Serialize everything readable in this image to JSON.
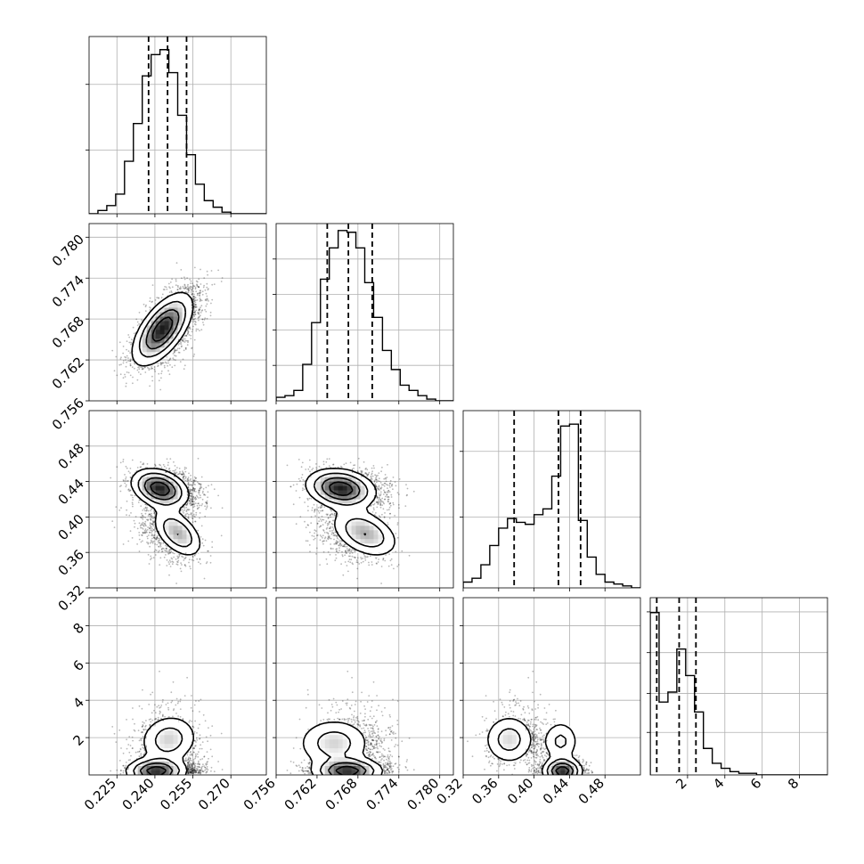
{
  "chart_data": {
    "type": "corner",
    "grid": true,
    "colors": {
      "line": "#000000",
      "grid": "#b0b0b0",
      "background": "#ffffff"
    },
    "parameters": [
      {
        "range": [
          0.214,
          0.284
        ],
        "ticks": [
          0.225,
          0.24,
          0.255,
          0.27
        ],
        "tick_labels": [
          "0.225",
          "0.240",
          "0.255",
          "0.270"
        ]
      },
      {
        "range": [
          0.756,
          0.782
        ],
        "ticks": [
          0.756,
          0.762,
          0.768,
          0.774,
          0.78
        ],
        "tick_labels": [
          "0.756",
          "0.762",
          "0.768",
          "0.774",
          "0.780"
        ]
      },
      {
        "range": [
          0.32,
          0.52
        ],
        "ticks": [
          0.32,
          0.36,
          0.4,
          0.44,
          0.48
        ],
        "tick_labels": [
          "0.32",
          "0.36",
          "0.40",
          "0.44",
          "0.48"
        ]
      },
      {
        "range": [
          0.0,
          9.5
        ],
        "ticks": [
          2,
          4,
          6,
          8
        ],
        "tick_labels": [
          "2",
          "4",
          "6",
          "8"
        ]
      }
    ],
    "histograms": [
      {
        "param": 0,
        "edges": [
          0.214,
          0.2175,
          0.221,
          0.2245,
          0.228,
          0.2315,
          0.235,
          0.2385,
          0.242,
          0.2455,
          0.249,
          0.2525,
          0.256,
          0.2595,
          0.263,
          0.2665,
          0.27,
          0.2735,
          0.277,
          0.2805,
          0.284
        ],
        "counts": [
          0,
          2,
          5,
          12,
          32,
          55,
          84,
          97,
          100,
          86,
          60,
          36,
          18,
          8,
          4,
          1,
          0,
          0,
          0,
          0
        ],
        "ymax": 108,
        "quantiles": [
          0.2375,
          0.245,
          0.2525
        ],
        "y_tick_fracs": [
          0.36,
          0.73
        ]
      },
      {
        "param": 1,
        "edges": [
          0.756,
          0.7573,
          0.7586,
          0.7599,
          0.7612,
          0.7625,
          0.7638,
          0.7651,
          0.7664,
          0.7677,
          0.769,
          0.7703,
          0.7716,
          0.7729,
          0.7742,
          0.7755,
          0.7768,
          0.7781,
          0.7794,
          0.7807,
          0.782
        ],
        "counts": [
          2,
          3,
          6,
          21,
          45,
          70,
          88,
          98,
          97,
          88,
          68,
          48,
          29,
          18,
          9,
          6,
          3,
          1,
          0,
          0
        ],
        "ymax": 102,
        "quantiles": [
          0.7635,
          0.7666,
          0.7701
        ],
        "y_tick_fracs": [
          0.2,
          0.4,
          0.6,
          0.8
        ]
      },
      {
        "param": 2,
        "edges": [
          0.32,
          0.33,
          0.34,
          0.35,
          0.36,
          0.37,
          0.38,
          0.39,
          0.4,
          0.41,
          0.42,
          0.43,
          0.44,
          0.45,
          0.46,
          0.47,
          0.48,
          0.49,
          0.5,
          0.51,
          0.52
        ],
        "counts": [
          3,
          5,
          12,
          22,
          31,
          36,
          34,
          33,
          38,
          41,
          58,
          84,
          85,
          35,
          16,
          7,
          3,
          2,
          1,
          0
        ],
        "ymax": 92,
        "quantiles": [
          0.3775,
          0.4275,
          0.4525
        ],
        "y_tick_fracs": [
          0.4,
          0.77
        ]
      },
      {
        "param": 3,
        "edges": [
          0.0,
          0.475,
          0.95,
          1.425,
          1.9,
          2.375,
          2.85,
          3.325,
          3.8,
          4.275,
          4.75,
          5.225,
          5.7,
          6.175,
          6.65,
          7.125,
          7.6,
          8.075,
          8.55,
          9.025,
          9.5
        ],
        "counts": [
          98,
          44,
          50,
          76,
          60,
          38,
          16,
          7,
          4,
          2,
          1,
          1,
          0,
          0,
          0,
          0,
          0,
          0,
          0,
          0
        ],
        "ymax": 107,
        "quantiles": [
          0.35,
          1.55,
          2.45
        ],
        "y_tick_fracs": [
          0.24,
          0.46,
          0.69,
          0.92
        ]
      }
    ]
  }
}
